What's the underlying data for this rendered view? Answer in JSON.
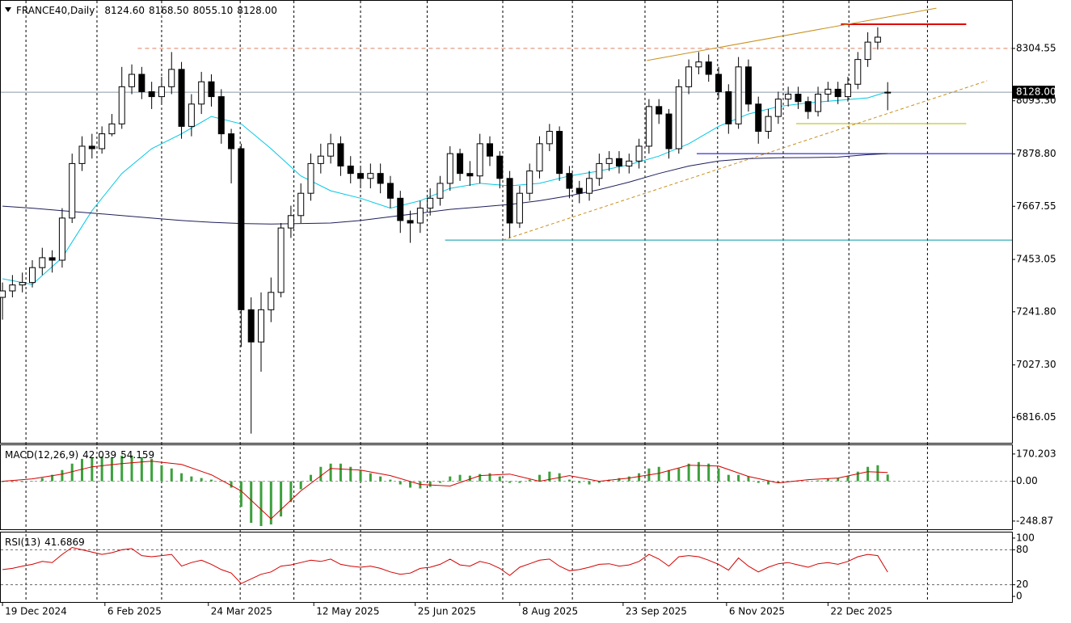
{
  "chart_data": {
    "type": "candlestick",
    "title": "FRANCE40,Daily",
    "header_ohlc": [
      {
        "value": 8124.6,
        "label": "8124.60"
      },
      {
        "value": 8168.5,
        "label": "8168.50"
      },
      {
        "value": 8055.1,
        "label": "8055.10"
      },
      {
        "value": 8128,
        "label": "8128.00"
      }
    ],
    "xlim": [
      -0.25,
      101.5
    ],
    "xticks": [
      {
        "value": 0,
        "label": "19 Dec 2024"
      },
      {
        "value": 10.3,
        "label": "6 Feb 2025"
      },
      {
        "value": 20.7,
        "label": "24 Mar 2025"
      },
      {
        "value": 31.3,
        "label": "12 May 2025"
      },
      {
        "value": 41.5,
        "label": "25 Jun 2025"
      },
      {
        "value": 52,
        "label": "8 Aug 2025"
      },
      {
        "value": 62.4,
        "label": "23 Sep 2025"
      },
      {
        "value": 72.8,
        "label": "6 Nov 2025"
      },
      {
        "value": 83,
        "label": "22 Dec 2025"
      }
    ],
    "xgrid": [
      2.36,
      9.5,
      16,
      23.9,
      29.3,
      36,
      42.7,
      50.3,
      57.3,
      64.6,
      71.9,
      78.5,
      85.1,
      93
    ],
    "ylim": [
      6713,
      8500
    ],
    "yticks": [
      {
        "value": 8304.55,
        "label": "8304.55"
      },
      {
        "value": 8093.3,
        "label": "8093.30"
      },
      {
        "value": 7878.8,
        "label": "7878.80"
      },
      {
        "value": 7667.55,
        "label": "7667.55"
      },
      {
        "value": 7453.05,
        "label": "7453.05"
      },
      {
        "value": 7241.8,
        "label": "7241.80"
      },
      {
        "value": 7027.3,
        "label": "7027.30"
      },
      {
        "value": 6816.05,
        "label": "6816.05"
      }
    ],
    "price_label": {
      "value": 8128,
      "label": "8128.00"
    },
    "up_color": "#ffffff",
    "down_color": "#000000",
    "open": [
      7300,
      7326,
      7350,
      7360,
      7420,
      7460,
      7450,
      7620,
      7840,
      7910,
      7900,
      7960,
      8000,
      8150,
      8200,
      8130,
      8110,
      8150,
      8220,
      7990,
      8080,
      8170,
      8110,
      7960,
      7900,
      7250,
      7120,
      7250,
      7320,
      7580,
      7630,
      7720,
      7840,
      7870,
      7920,
      7830,
      7800,
      7780,
      7800,
      7760,
      7700,
      7610,
      7600,
      7660,
      7700,
      7760,
      7880,
      7800,
      7790,
      7920,
      7870,
      7780,
      7600,
      7720,
      7810,
      7920,
      7970,
      7800,
      7740,
      7720,
      7780,
      7840,
      7860,
      7830,
      7850,
      7910,
      8070,
      8040,
      7900,
      8150,
      8230,
      8250,
      8200,
      8130,
      8000,
      8230,
      8080,
      7970,
      8030,
      8100,
      8120,
      8090,
      8050,
      8120,
      8140,
      8110,
      8160,
      8260,
      8330,
      8124.6
    ],
    "high": [
      7360,
      7390,
      7400,
      7450,
      7500,
      7490,
      7660,
      7880,
      7950,
      7960,
      7990,
      8040,
      8230,
      8240,
      8230,
      8170,
      8190,
      8290,
      8250,
      8120,
      8210,
      8200,
      8140,
      7980,
      7920,
      7300,
      7320,
      7380,
      7600,
      7670,
      7760,
      7880,
      7920,
      7960,
      7950,
      7870,
      7830,
      7840,
      7840,
      7790,
      7730,
      7650,
      7690,
      7740,
      7790,
      7910,
      7900,
      7850,
      7960,
      7950,
      7890,
      7810,
      7750,
      7840,
      7950,
      8000,
      7990,
      7830,
      7770,
      7810,
      7880,
      7890,
      7890,
      7880,
      7940,
      8100,
      8100,
      8060,
      8180,
      8260,
      8290,
      8280,
      8230,
      8160,
      8270,
      8260,
      8110,
      8060,
      8130,
      8150,
      8150,
      8110,
      8150,
      8170,
      8170,
      8190,
      8290,
      8370,
      8390,
      8168.5
    ],
    "low": [
      7210,
      7300,
      7320,
      7340,
      7390,
      7400,
      7420,
      7600,
      7810,
      7860,
      7880,
      7950,
      7980,
      8120,
      8100,
      8060,
      8080,
      8120,
      7940,
      7950,
      8040,
      8070,
      7920,
      7760,
      7100,
      6750,
      7000,
      7200,
      7300,
      7540,
      7600,
      7690,
      7800,
      7840,
      7790,
      7760,
      7740,
      7740,
      7720,
      7660,
      7560,
      7520,
      7560,
      7630,
      7670,
      7730,
      7770,
      7750,
      7760,
      7830,
      7740,
      7540,
      7580,
      7690,
      7780,
      7890,
      7770,
      7700,
      7680,
      7690,
      7750,
      7810,
      7800,
      7800,
      7820,
      7880,
      8000,
      7860,
      7880,
      8120,
      8200,
      8170,
      8100,
      7960,
      7980,
      8050,
      7920,
      7940,
      8000,
      8070,
      8060,
      8020,
      8030,
      8090,
      8080,
      8090,
      8140,
      8230,
      8300,
      8055.1
    ],
    "close": [
      7326,
      7350,
      7360,
      7420,
      7460,
      7450,
      7620,
      7840,
      7910,
      7900,
      7960,
      8000,
      8150,
      8200,
      8130,
      8110,
      8150,
      8220,
      7990,
      8080,
      8170,
      8110,
      7960,
      7900,
      7250,
      7120,
      7250,
      7320,
      7580,
      7630,
      7720,
      7840,
      7870,
      7920,
      7830,
      7800,
      7780,
      7800,
      7760,
      7700,
      7610,
      7600,
      7660,
      7700,
      7760,
      7880,
      7800,
      7790,
      7920,
      7870,
      7780,
      7600,
      7720,
      7810,
      7920,
      7970,
      7800,
      7740,
      7720,
      7780,
      7840,
      7860,
      7830,
      7850,
      7910,
      8070,
      8040,
      7900,
      8150,
      8230,
      8250,
      8200,
      8130,
      8000,
      8230,
      8080,
      7970,
      8030,
      8100,
      8120,
      8090,
      8050,
      8120,
      8140,
      8110,
      8160,
      8260,
      8330,
      8350,
      8128
    ],
    "ma": {
      "x": [
        0,
        3,
        6,
        9,
        12,
        15,
        18,
        21,
        24,
        27,
        30,
        33,
        36,
        39,
        42,
        45,
        48,
        51,
        54,
        57,
        60,
        63,
        66,
        69,
        72,
        75,
        78,
        81,
        84,
        87,
        89
      ],
      "series": [
        {
          "color": "#00c8e6",
          "values": [
            7375,
            7352,
            7460,
            7650,
            7800,
            7900,
            7960,
            8030,
            8000,
            7900,
            7790,
            7730,
            7700,
            7660,
            7690,
            7740,
            7760,
            7750,
            7760,
            7790,
            7810,
            7835,
            7870,
            7920,
            7990,
            8040,
            8070,
            8085,
            8095,
            8105,
            8130
          ]
        },
        {
          "color": "#1e1e5a",
          "values": [
            7668,
            7660,
            7650,
            7640,
            7630,
            7620,
            7610,
            7603,
            7598,
            7596,
            7598,
            7600,
            7610,
            7625,
            7640,
            7655,
            7665,
            7675,
            7690,
            7710,
            7735,
            7765,
            7800,
            7830,
            7850,
            7860,
            7863,
            7864,
            7866,
            7876,
            7880
          ]
        }
      ]
    },
    "objects": [
      {
        "type": "hline",
        "price": 8304.55,
        "start": 13.6,
        "end": 101.5,
        "color": "#e08060",
        "dash": true
      },
      {
        "type": "hline",
        "price": 8402,
        "start": 84.3,
        "end": 96.9,
        "color": "#e00000",
        "dash": false
      },
      {
        "type": "hline",
        "price": 8001,
        "start": 79.8,
        "end": 96.9,
        "color": "#b4b400",
        "dash": false
      },
      {
        "type": "hline",
        "price": 7880,
        "start": 69.8,
        "end": 101.5,
        "color": "#0000c8",
        "dash": false
      },
      {
        "type": "hline",
        "price": 7531,
        "start": 44.5,
        "end": 101.5,
        "color": "#0096a8",
        "dash": false
      },
      {
        "type": "trend",
        "x1": 64.8,
        "p1": 8256,
        "x2": 93.9,
        "p2": 8467,
        "color": "#c8901c",
        "dash": false
      },
      {
        "type": "trend",
        "x1": 50.3,
        "p1": 7531,
        "x2": 99,
        "p2": 8174,
        "color": "#c8901c",
        "dash": true
      }
    ],
    "macd": {
      "title": "MACD(12,26,9)",
      "header_values": [
        42.039,
        54.159
      ],
      "ylim": [
        -300,
        225
      ],
      "yticks": [
        170.203,
        {
          "value": 0,
          "label": "0.00"
        },
        -248.87
      ],
      "hist_color": "#3ca03c",
      "signal_color": "#d40000",
      "hist": [
        -5,
        -5,
        -5,
        0,
        20,
        40,
        70,
        110,
        140,
        150,
        155,
        150,
        160,
        160,
        150,
        140,
        100,
        80,
        50,
        30,
        20,
        10,
        0,
        -40,
        -160,
        -260,
        -280,
        -270,
        -220,
        -130,
        -50,
        40,
        90,
        110,
        110,
        90,
        70,
        50,
        30,
        10,
        -20,
        -40,
        -45,
        -35,
        -10,
        30,
        40,
        35,
        45,
        50,
        30,
        -10,
        -10,
        10,
        40,
        60,
        50,
        10,
        -10,
        -20,
        -10,
        10,
        20,
        30,
        50,
        80,
        90,
        70,
        80,
        110,
        120,
        110,
        80,
        40,
        40,
        30,
        -10,
        -20,
        -10,
        0,
        5,
        0,
        5,
        15,
        20,
        30,
        60,
        90,
        100,
        42.039
      ],
      "signal": [
        0,
        15,
        45,
        90,
        110,
        125,
        105,
        40,
        -60,
        -235,
        -60,
        80,
        70,
        35,
        -20,
        -30,
        35,
        45,
        0,
        35,
        0,
        20,
        50,
        100,
        95,
        30,
        -10,
        10,
        20,
        60,
        54.159
      ]
    },
    "rsi": {
      "title": "RSI(13)",
      "value": 41.6869,
      "ylim": [
        -9.6,
        109.6
      ],
      "yticks": [
        100,
        80,
        20,
        0
      ],
      "levels": [
        80,
        20
      ],
      "color": "#d40000",
      "values": [
        46,
        48,
        52,
        55,
        60,
        58,
        72,
        84,
        80,
        76,
        72,
        75,
        80,
        82,
        70,
        68,
        70,
        72,
        52,
        58,
        62,
        55,
        46,
        40,
        22,
        30,
        38,
        42,
        52,
        54,
        58,
        62,
        60,
        64,
        55,
        52,
        50,
        52,
        48,
        42,
        38,
        40,
        48,
        50,
        55,
        64,
        54,
        52,
        60,
        56,
        48,
        36,
        50,
        56,
        62,
        64,
        52,
        44,
        46,
        50,
        55,
        56,
        52,
        54,
        60,
        72,
        64,
        52,
        68,
        70,
        68,
        62,
        55,
        45,
        66,
        52,
        42,
        50,
        56,
        58,
        54,
        50,
        56,
        58,
        55,
        60,
        68,
        72,
        70,
        41.6869
      ]
    }
  }
}
